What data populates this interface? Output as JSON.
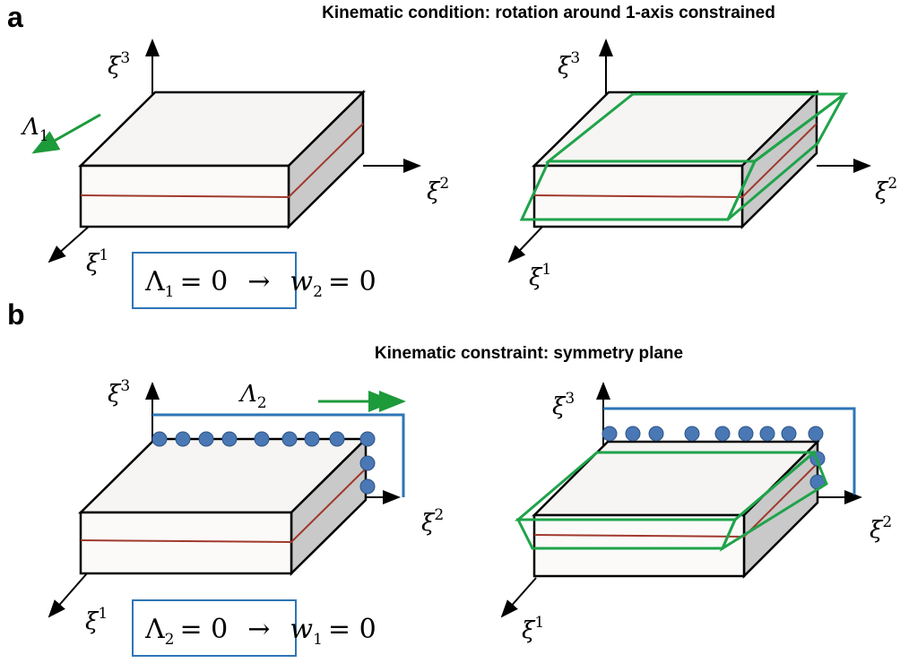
{
  "panel_a": {
    "label": "a",
    "title": "Kinematic condition: rotation around 1-axis constrained",
    "axes_left": {
      "x1": {
        "symbol": "ξ",
        "index": "1"
      },
      "x2": {
        "symbol": "ξ",
        "index": "2"
      },
      "x3": {
        "symbol": "ξ",
        "index": "3"
      }
    },
    "axes_right": {
      "x1": {
        "symbol": "ξ",
        "index": "1"
      },
      "x2": {
        "symbol": "ξ",
        "index": "2"
      },
      "x3": {
        "symbol": "ξ",
        "index": "3"
      }
    },
    "load": {
      "symbol": "Λ",
      "index": "1"
    },
    "equation": {
      "lhs_symbol": "Λ",
      "lhs_index": "1",
      "lhs_value": "= 0",
      "arrow": "→",
      "rhs_symbol": "w",
      "rhs_index": "2",
      "rhs_value": "= 0"
    }
  },
  "panel_b": {
    "label": "b",
    "title": "Kinematic constraint:  symmetry plane",
    "axes_left": {
      "x1": {
        "symbol": "ξ",
        "index": "1"
      },
      "x2": {
        "symbol": "ξ",
        "index": "2"
      },
      "x3": {
        "symbol": "ξ",
        "index": "3"
      }
    },
    "axes_right": {
      "x1": {
        "symbol": "ξ",
        "index": "1"
      },
      "x2": {
        "symbol": "ξ",
        "index": "2"
      },
      "x3": {
        "symbol": "ξ",
        "index": "3"
      }
    },
    "load": {
      "symbol": "Λ",
      "index": "2"
    },
    "equation": {
      "lhs_symbol": "Λ",
      "lhs_index": "2",
      "lhs_value": "= 0",
      "arrow": "→",
      "rhs_symbol": "w",
      "rhs_index": "1",
      "rhs_value": "= 0"
    }
  }
}
